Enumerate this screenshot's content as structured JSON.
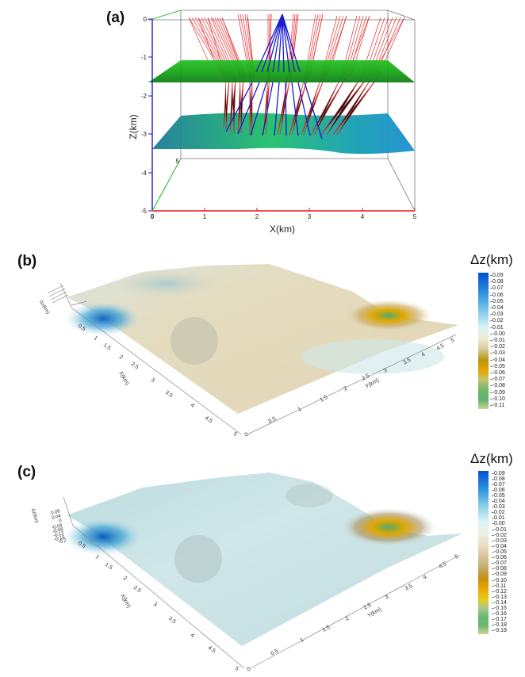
{
  "chart_data": [
    {
      "panel": "(a)",
      "type": "3d-ray-diagram",
      "xlabel": "X(km)",
      "ylabel": "Z(km)",
      "x_ticks": [
        "0",
        "1",
        "2",
        "3",
        "4",
        "5"
      ],
      "z_ticks": [
        "0",
        "-1",
        "-2",
        "-3",
        "-4",
        "-5"
      ],
      "y_depth_tick": "5",
      "xlim": [
        0,
        5
      ],
      "zlim": [
        -5,
        0
      ],
      "layers": [
        {
          "name": "flat interface",
          "depth_km": -1.5,
          "color": "#1a9e1a"
        },
        {
          "name": "undulating interface",
          "depth_km": -3.2,
          "color": "#16a0a0"
        }
      ],
      "rays": [
        {
          "name": "reflected rays layer 1",
          "color": "#e8171b"
        },
        {
          "name": "reflected rays layer 2",
          "color": "#1a1ad0"
        }
      ],
      "source_x_km": 2.45
    },
    {
      "panel": "(b)",
      "type": "3d-surface",
      "colorbar_title": "Δz(km)",
      "colorbar_ticks": [
        "0.09",
        "0.08",
        "0.07",
        "0.06",
        "0.05",
        "0.04",
        "0.03",
        "0.02",
        "0.01",
        "-0.00",
        "-0.01",
        "-0.02",
        "-0.03",
        "-0.04",
        "-0.05",
        "-0.06",
        "-0.07",
        "-0.08",
        "-0.09",
        "-0.10",
        "-0.11"
      ],
      "crange": [
        -0.11,
        0.09
      ],
      "x_axis_label": "X(km)",
      "y_axis_label": "Y(km)",
      "z_axis_label": "Δz(km)",
      "x_ticks": [
        "0.5",
        "1",
        "1.5",
        "2",
        "2.5",
        "3",
        "3.5",
        "4",
        "4.5",
        "5"
      ],
      "y_ticks": [
        "0",
        "0.5",
        "1",
        "1.5",
        "2",
        "2.5",
        "3",
        "3.5",
        "4",
        "4.5",
        "5"
      ],
      "extremes": {
        "max_near": "x≈0.5, y≈0 (blue)",
        "min_near": "x≈0, y≈5 (yellow/green)"
      }
    },
    {
      "panel": "(c)",
      "type": "3d-surface",
      "colorbar_title": "Δz(km)",
      "colorbar_ticks": [
        "0.09",
        "0.08",
        "0.07",
        "0.06",
        "0.05",
        "0.04",
        "0.03",
        "0.02",
        "0.01",
        "0.00",
        "-0.01",
        "-0.02",
        "-0.03",
        "-0.04",
        "-0.05",
        "-0.06",
        "-0.07",
        "-0.08",
        "-0.09",
        "-0.10",
        "-0.11",
        "-0.12",
        "-0.13",
        "-0.14",
        "-0.15",
        "-0.16",
        "-0.17",
        "-0.18",
        "-0.19"
      ],
      "crange": [
        -0.19,
        0.09
      ],
      "x_axis_label": "X(km)",
      "y_axis_label": "Y(km)",
      "z_axis_label": "Δz(km)",
      "z_ticks": [
        "0.08",
        "0.04",
        "0",
        "-0.04",
        "-0.08",
        "-0.12",
        "-0.16",
        "-0.2"
      ],
      "x_ticks": [
        "0.5",
        "1",
        "1.5",
        "2",
        "2.5",
        "3",
        "3.5",
        "4",
        "4.5",
        "5"
      ],
      "y_ticks": [
        "0",
        "0.5",
        "1",
        "1.5",
        "2",
        "2.5",
        "3",
        "3.5",
        "4",
        "4.5",
        "5"
      ],
      "extremes": {
        "max_near": "x≈0.5, y≈0 (blue)",
        "min_near": "x≈0, y≈5 (yellow/green)"
      }
    }
  ],
  "labels": {
    "a": "(a)",
    "b": "(b)",
    "c": "(c)"
  },
  "panel_a": {
    "xlabel": "X(km)",
    "zlabel": "Z(km)",
    "x_ticks": [
      "0",
      "1",
      "2",
      "3",
      "4",
      "5"
    ],
    "z_ticks": [
      "0",
      "-1",
      "-2",
      "-3",
      "-4",
      "-5"
    ],
    "y_tick": "5"
  },
  "panel_b": {
    "cbar_title": "Δz(km)",
    "cbar_ticks": [
      "0.09",
      "0.08",
      "0.07",
      "0.06",
      "0.05",
      "0.04",
      "0.03",
      "0.02",
      "0.01",
      "-0.00",
      "-0.01",
      "-0.02",
      "-0.03",
      "-0.04",
      "-0.05",
      "-0.06",
      "-0.07",
      "-0.08",
      "-0.09",
      "-0.10",
      "-0.11"
    ],
    "x_ticks": [
      "0.5",
      "1",
      "1.5",
      "2",
      "2.5",
      "3",
      "3.5",
      "4",
      "4.5",
      "5"
    ],
    "y_ticks": [
      "0",
      "0.5",
      "1",
      "1.5",
      "2",
      "2.5",
      "3",
      "3.5",
      "4",
      "4.5",
      "5"
    ],
    "xlabel": "X(km)",
    "ylabel": "Y(km)",
    "zlabel": "Δz(km)"
  },
  "panel_c": {
    "cbar_title": "Δz(km)",
    "cbar_ticks": [
      "0.09",
      "0.08",
      "0.07",
      "0.06",
      "0.05",
      "0.04",
      "0.03",
      "0.02",
      "0.01",
      "0.00",
      "-0.01",
      "-0.02",
      "-0.03",
      "-0.04",
      "-0.05",
      "-0.06",
      "-0.07",
      "-0.08",
      "-0.09",
      "-0.10",
      "-0.11",
      "-0.12",
      "-0.13",
      "-0.14",
      "-0.15",
      "-0.16",
      "-0.17",
      "-0.18",
      "-0.19"
    ],
    "z_ticks": [
      "0.08",
      "0.04",
      "0",
      "-0.04",
      "-0.08",
      "-0.12",
      "-0.16",
      "-0.2"
    ],
    "x_ticks": [
      "0.5",
      "1",
      "1.5",
      "2",
      "2.5",
      "3",
      "3.5",
      "4",
      "4.5",
      "5"
    ],
    "y_ticks": [
      "0",
      "0.5",
      "1",
      "1.5",
      "2",
      "2.5",
      "3",
      "3.5",
      "4",
      "4.5",
      "5"
    ],
    "xlabel": "X(km)",
    "ylabel": "Y(km)",
    "zlabel": "Δz(km)"
  }
}
